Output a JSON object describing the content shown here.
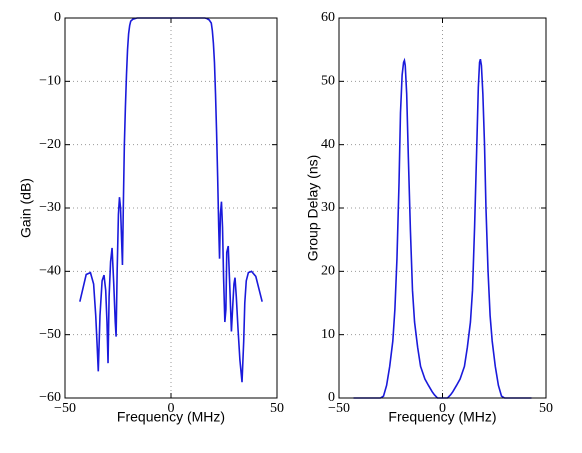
{
  "chart_data": [
    {
      "type": "line",
      "xlabel": "Frequency (MHz)",
      "ylabel": "Gain (dB)",
      "xlim": [
        -50,
        50
      ],
      "xticks": [
        {
          "value": -50,
          "label": "−50"
        },
        0,
        50
      ],
      "ylim": [
        -60,
        0
      ],
      "yticks": [
        {
          "value": -60,
          "label": "−60"
        },
        {
          "value": -50,
          "label": "−50"
        },
        {
          "value": -40,
          "label": "−40"
        },
        {
          "value": -30,
          "label": "−30"
        },
        {
          "value": -20,
          "label": "−20"
        },
        {
          "value": -10,
          "label": "−10"
        },
        0
      ],
      "grid": true,
      "x": [
        -43,
        -40,
        -38,
        -36.5,
        -35.5,
        -34.8,
        -34.3,
        -33.5,
        -32.5,
        -31.6,
        -30.8,
        -30.2,
        -29.7,
        -29.2,
        -28.5,
        -27.8,
        -27,
        -26.3,
        -25.9,
        -25.4,
        -24.8,
        -24.3,
        -23.8,
        -23.3,
        -22.9,
        -22.5,
        -22,
        -21.5,
        -21,
        -20.5,
        -20,
        -19.5,
        -19,
        -18,
        -17,
        -16,
        -10,
        0,
        10,
        16,
        17,
        18,
        19,
        19.5,
        20,
        20.5,
        21,
        21.5,
        22,
        22.5,
        22.9,
        23.3,
        23.8,
        24.3,
        24.8,
        25.4,
        25.9,
        26.3,
        27,
        27.8,
        28.5,
        29.2,
        29.7,
        30.2,
        30.8,
        31.6,
        32.5,
        33.5,
        34.3,
        34.8,
        35.5,
        36.5,
        38,
        40,
        43
      ],
      "series": [
        {
          "name": "Gain",
          "color": "#1a1adb",
          "values": [
            -44.8,
            -40.5,
            -40.2,
            -42,
            -47,
            -52,
            -55.8,
            -47,
            -41.5,
            -40.6,
            -43,
            -48,
            -54.5,
            -44,
            -38.5,
            -36.3,
            -42,
            -48,
            -50.3,
            -40,
            -31,
            -28.3,
            -30,
            -35,
            -39,
            -30,
            -20,
            -14,
            -9,
            -5,
            -2.5,
            -1.2,
            -0.5,
            -0.2,
            -0.1,
            0,
            0,
            0,
            0,
            0,
            -0.1,
            -0.3,
            -0.8,
            -2,
            -4,
            -7,
            -12,
            -18,
            -25,
            -33,
            -38,
            -31,
            -29,
            -33,
            -41,
            -48,
            -46,
            -37,
            -36,
            -43,
            -49.5,
            -45,
            -42,
            -41,
            -44,
            -49,
            -54,
            -57.5,
            -51,
            -45,
            -41.5,
            -40.2,
            -40,
            -40.8,
            -44.8
          ]
        }
      ]
    },
    {
      "type": "line",
      "xlabel": "Frequency (MHz)",
      "ylabel": "Group Delay (ns)",
      "xlim": [
        -50,
        50
      ],
      "xticks": [
        {
          "value": -50,
          "label": "−50"
        },
        0,
        50
      ],
      "ylim": [
        0,
        60
      ],
      "yticks": [
        0,
        10,
        20,
        30,
        40,
        50,
        60
      ],
      "grid": true,
      "x": [
        -43,
        -30,
        -28.5,
        -27,
        -25.5,
        -24,
        -23,
        -22,
        -21,
        -20.3,
        -19.5,
        -18.8,
        -18.4,
        -18,
        -17.3,
        -16.5,
        -15.5,
        -14.5,
        -13.5,
        -12,
        -10.6,
        -8.5,
        -6.8,
        -5,
        -3.9,
        -2.4,
        0,
        2.4,
        3.9,
        5,
        6.8,
        8.5,
        10.6,
        12,
        13.5,
        14.5,
        15.5,
        16.5,
        17.3,
        17.9,
        18.3,
        18.8,
        19.5,
        20.3,
        21,
        22,
        23,
        24,
        25.5,
        27,
        28.5,
        30,
        43
      ],
      "series": [
        {
          "name": "Group Delay",
          "color": "#1a1adb",
          "values": [
            0,
            0,
            0.3,
            2,
            5,
            9,
            14,
            22,
            34,
            45,
            51,
            53,
            53.3,
            52.5,
            48,
            38,
            26.5,
            17,
            12,
            8,
            5,
            3,
            2,
            1,
            0.5,
            0,
            0,
            0,
            0.5,
            1,
            2,
            3,
            5,
            8,
            12,
            17,
            27,
            39,
            49,
            53,
            53.5,
            52.5,
            48,
            40,
            30,
            20,
            13,
            9,
            5,
            2,
            0.3,
            0,
            0
          ]
        }
      ]
    }
  ]
}
